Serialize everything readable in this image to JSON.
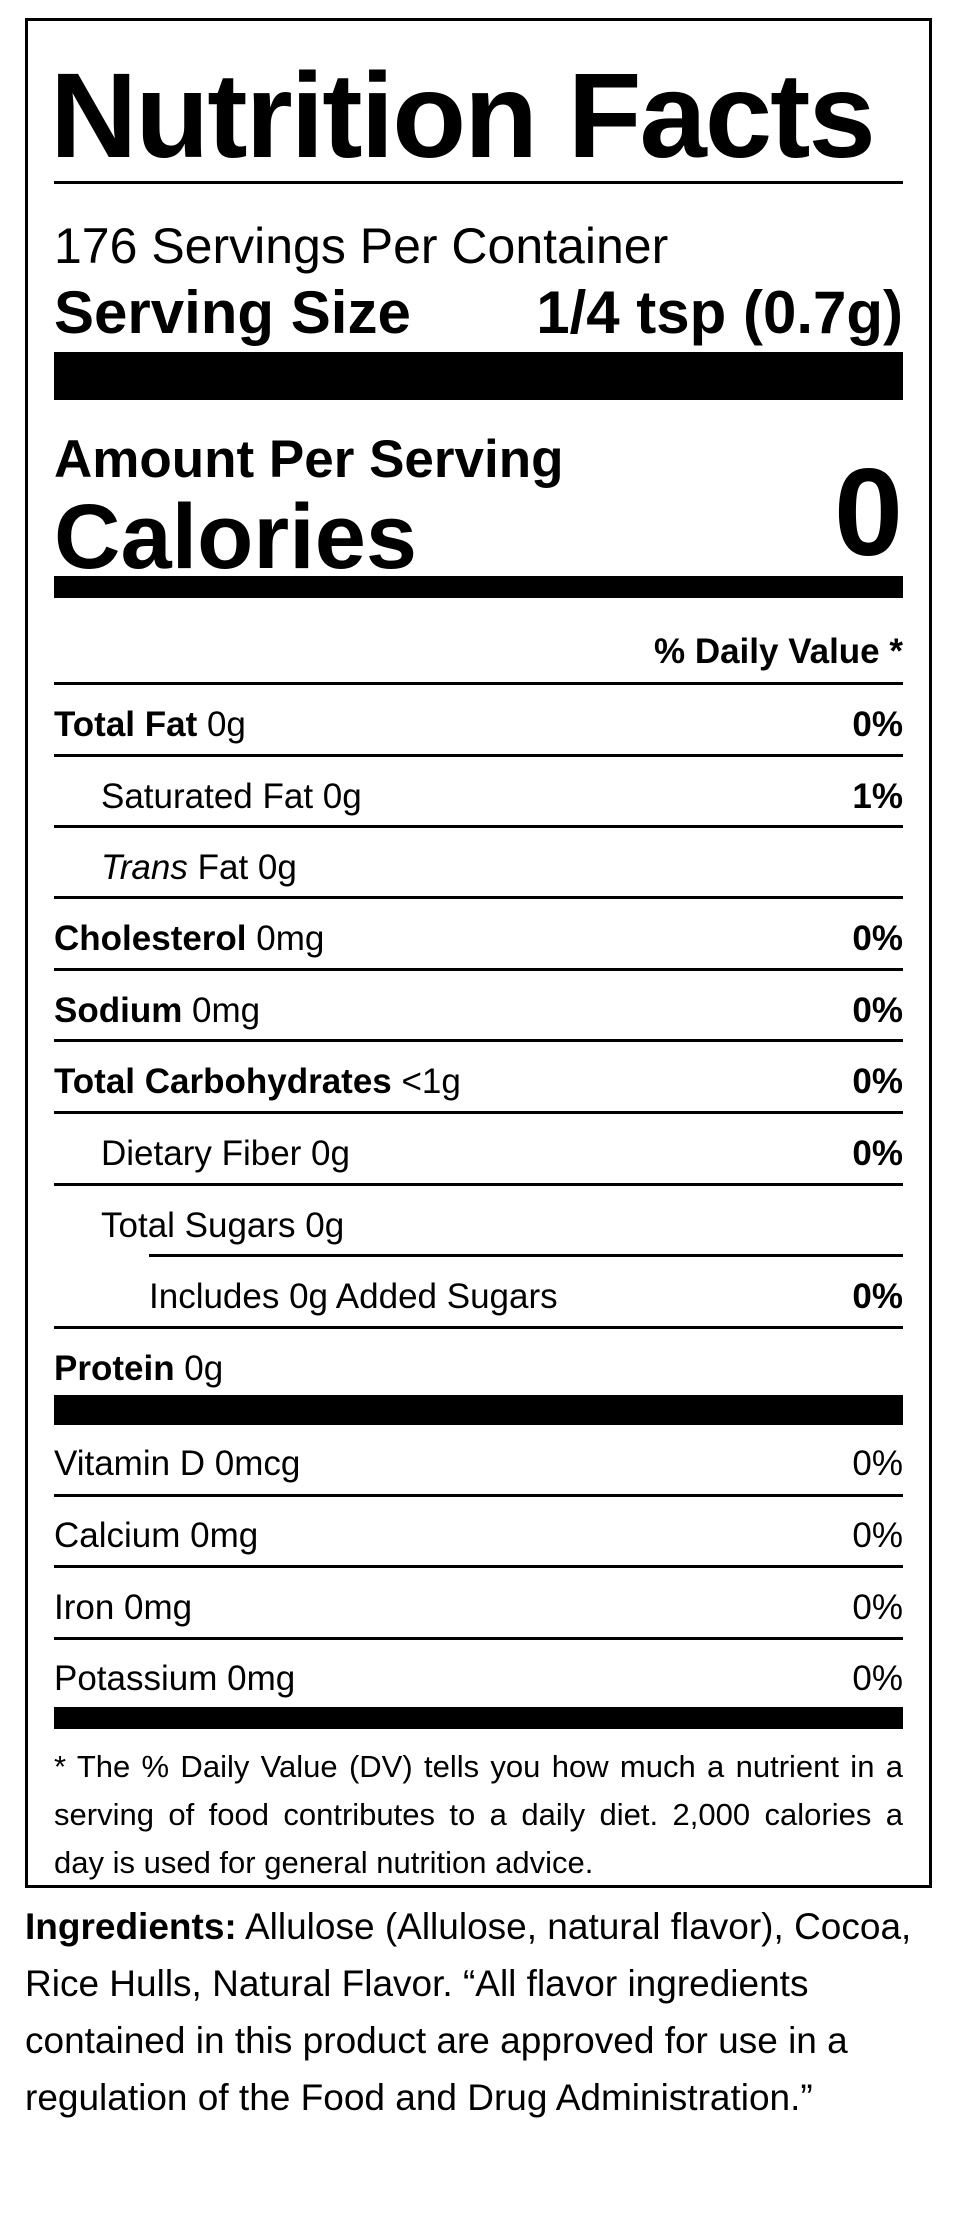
{
  "label": {
    "title": "Nutrition Facts",
    "servings_per_container": "176 Servings Per Container",
    "serving_size_label": "Serving Size",
    "serving_size_value": "1/4 tsp (0.7g)",
    "amount_per_serving": "Amount Per Serving",
    "calories_label": "Calories",
    "calories_value": "0",
    "daily_value_header": "% Daily Value *",
    "nutrients": {
      "total_fat": {
        "name": "Total Fat",
        "amount": " 0g",
        "dv": "0%"
      },
      "saturated_fat": {
        "name": "Saturated Fat 0g",
        "dv": "1%"
      },
      "trans_fat": {
        "name_italic": "Trans",
        "name_rest": " Fat 0g"
      },
      "cholesterol": {
        "name": "Cholesterol",
        "amount": " 0mg",
        "dv": "0%"
      },
      "sodium": {
        "name": "Sodium",
        "amount": " 0mg",
        "dv": "0%"
      },
      "total_carbohydrates": {
        "name": "Total Carbohydrates",
        "amount": " <1g",
        "dv": "0%"
      },
      "dietary_fiber": {
        "name": "Dietary Fiber 0g",
        "dv": "0%"
      },
      "total_sugars": {
        "name": "Total Sugars 0g"
      },
      "added_sugars": {
        "name": "Includes 0g Added Sugars",
        "dv": "0%"
      },
      "protein": {
        "name": "Protein",
        "amount": " 0g"
      }
    },
    "vitamins": {
      "vitamin_d": {
        "name": "Vitamin D 0mcg",
        "dv": "0%"
      },
      "calcium": {
        "name": "Calcium 0mg",
        "dv": "0%"
      },
      "iron": {
        "name": "Iron 0mg",
        "dv": "0%"
      },
      "potassium": {
        "name": "Potassium 0mg",
        "dv": "0%"
      }
    },
    "footnote": "* The % Daily Value (DV) tells you how much a nutrient in a serving of food contributes to a daily diet. 2,000 calories a day is used for general nutrition advice."
  },
  "ingredients": {
    "label": "Ingredients:",
    "text": " Allulose (Allulose, natural flavor), Cocoa, Rice Hulls, Natural Flavor. “All flavor ingredients contained in this product are approved for use in a regulation of the Food and Drug Administration.”"
  }
}
